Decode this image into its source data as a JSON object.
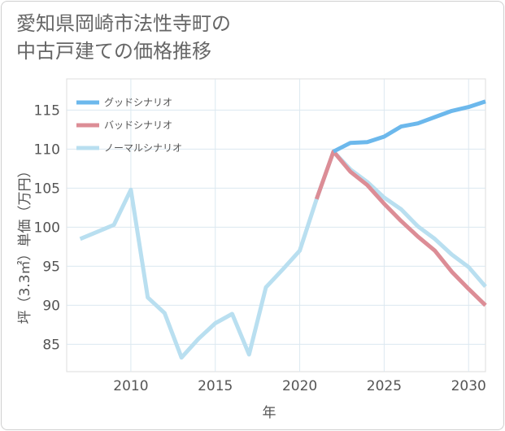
{
  "title_line1": "愛知県岡崎市法性寺町の",
  "title_line2": "中古戸建ての価格推移",
  "chart_data": {
    "type": "line",
    "xlabel": "年",
    "ylabel": "坪（3.3㎡）単価（万円）",
    "xlim": [
      2006.2,
      2031
    ],
    "ylim": [
      81.5,
      119
    ],
    "x_ticks": [
      2010,
      2015,
      2020,
      2025,
      2030
    ],
    "y_ticks": [
      85,
      90,
      95,
      100,
      105,
      110,
      115
    ],
    "legend_position": "top-left",
    "grid": true,
    "series": [
      {
        "name": "グッドシナリオ",
        "color": "#6cb8ec",
        "x": [
          2022,
          2023,
          2024,
          2025,
          2026,
          2027,
          2028,
          2029,
          2030,
          2031
        ],
        "values": [
          109.7,
          110.8,
          110.9,
          111.6,
          112.9,
          113.3,
          114.1,
          114.9,
          115.4,
          116.1
        ]
      },
      {
        "name": "バッドシナリオ",
        "color": "#dc8d96",
        "x": [
          2021,
          2022,
          2023,
          2024,
          2025,
          2026,
          2027,
          2028,
          2029,
          2030,
          2031
        ],
        "values": [
          103.6,
          109.7,
          107.1,
          105.4,
          103.0,
          100.8,
          98.8,
          97.0,
          94.3,
          92.1,
          90.0
        ]
      },
      {
        "name": "ノーマルシナリオ",
        "color": "#b9dff0",
        "x": [
          2007,
          2008,
          2009,
          2010,
          2011,
          2012,
          2013,
          2014,
          2015,
          2016,
          2017,
          2018,
          2019,
          2020,
          2021,
          2022,
          2023,
          2024,
          2025,
          2026,
          2027,
          2028,
          2029,
          2030,
          2031
        ],
        "values": [
          98.5,
          99.4,
          100.3,
          104.8,
          91.0,
          89.0,
          83.3,
          85.7,
          87.7,
          88.9,
          83.7,
          92.3,
          94.6,
          97.0,
          103.6,
          109.7,
          107.4,
          105.8,
          103.8,
          102.3,
          100.1,
          98.5,
          96.5,
          94.9,
          92.4
        ]
      }
    ]
  }
}
